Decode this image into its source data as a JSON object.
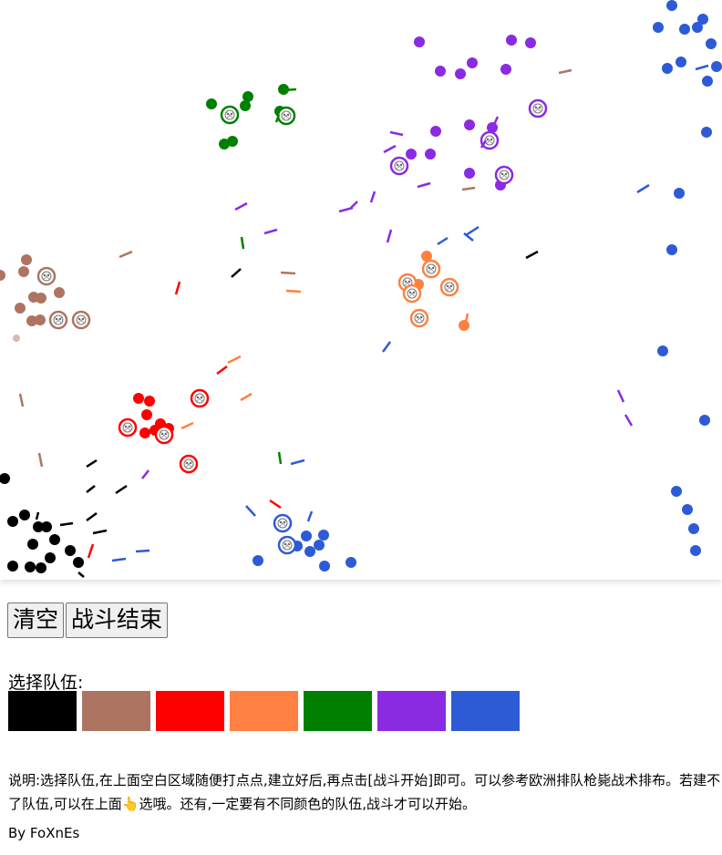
{
  "controls": {
    "clear_label": "清空",
    "end_label": "战斗结束"
  },
  "team_select": {
    "label": "选择队伍:",
    "teams": [
      {
        "name": "black",
        "color": "#000000"
      },
      {
        "name": "brown",
        "color": "#ae7462"
      },
      {
        "name": "red",
        "color": "#ff0000"
      },
      {
        "name": "orange",
        "color": "#ff8040"
      },
      {
        "name": "green",
        "color": "#008000"
      },
      {
        "name": "purple",
        "color": "#8a2be2"
      },
      {
        "name": "blue",
        "color": "#2d5bd6"
      }
    ]
  },
  "description": "说明:选择队伍,在上面空白区域随便打点点,建立好后,再点击[战斗开始]即可。可以参考欧洲排队枪毙战术排布。若建不了队伍,可以在上面👆选哦。还有,一定要有不同颜色的队伍,战斗才可以开始。",
  "author": "By FoXnEs",
  "icons": {
    "dead_soldier": "skull-icon",
    "bullet": "bullet-streak"
  }
}
